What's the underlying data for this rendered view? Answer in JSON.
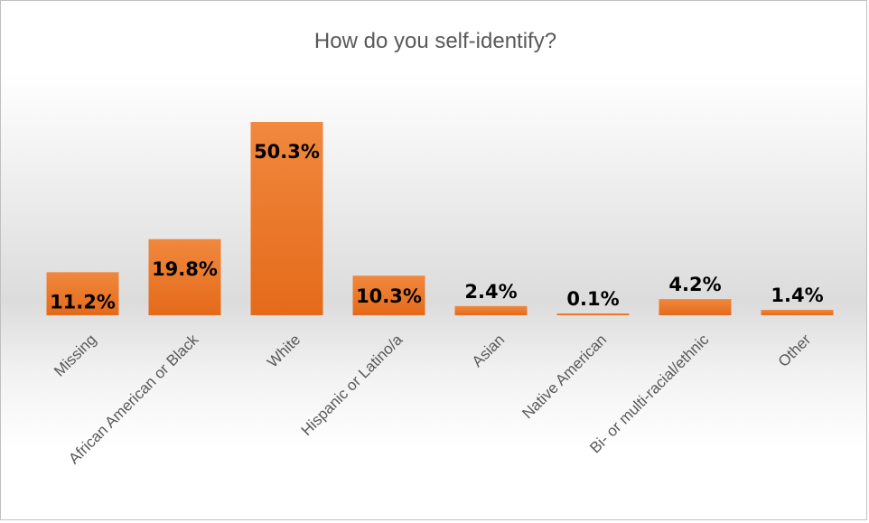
{
  "chart_data": {
    "type": "bar",
    "title": "How do you self-identify?",
    "xlabel": "",
    "ylabel": "",
    "categories": [
      "Missing",
      "African American or Black",
      "White",
      "Hispanic or Latino/a",
      "Asian",
      "Native American",
      "Bi- or multi-racial/ethnic",
      "Other"
    ],
    "values": [
      11.2,
      19.8,
      50.3,
      10.3,
      2.4,
      0.1,
      4.2,
      1.4
    ],
    "data_labels": [
      "11.2%",
      "19.8%",
      "50.3%",
      "10.3%",
      "2.4%",
      "0.1%",
      "4.2%",
      "1.4%"
    ],
    "ylim": [
      0,
      60
    ],
    "grid": false,
    "legend": "none",
    "bar_color": "#ed7d31"
  }
}
